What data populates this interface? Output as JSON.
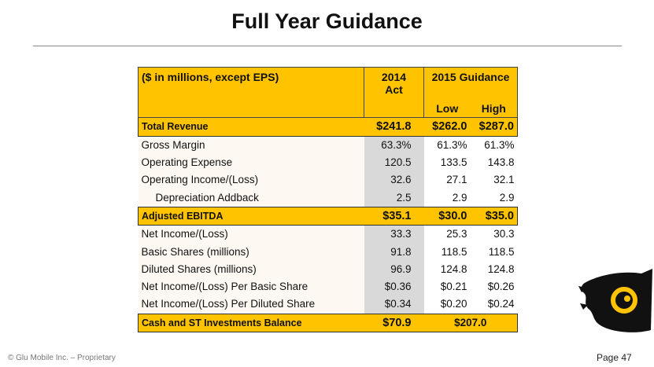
{
  "header": {
    "title": "Full Year Guidance"
  },
  "table": {
    "columns": {
      "label": "($ in millions, except EPS)",
      "act": "2014 Act",
      "guidance": "2015 Guidance",
      "low": "Low",
      "high": "High"
    },
    "rows": [
      {
        "label": "Total Revenue",
        "act": "$241.8",
        "low": "$262.0",
        "high": "$287.0",
        "highlight": true
      },
      {
        "label": "Gross Margin",
        "act": "63.3%",
        "low": "61.3%",
        "high": "61.3%"
      },
      {
        "label": "Operating Expense",
        "act": "120.5",
        "low": "133.5",
        "high": "143.8"
      },
      {
        "label": "Operating Income/(Loss)",
        "act": "32.6",
        "low": "27.1",
        "high": "32.1"
      },
      {
        "label": "Depreciation Addback",
        "act": "2.5",
        "low": "2.9",
        "high": "2.9",
        "indent": true
      },
      {
        "label": "Adjusted EBITDA",
        "act": "$35.1",
        "low": "$30.0",
        "high": "$35.0",
        "highlight": true
      },
      {
        "label": "Net Income/(Loss)",
        "act": "33.3",
        "low": "25.3",
        "high": "30.3"
      },
      {
        "label": "Basic Shares (millions)",
        "act": "91.8",
        "low": "118.5",
        "high": "118.5"
      },
      {
        "label": "Diluted Shares (millions)",
        "act": "96.9",
        "low": "124.8",
        "high": "124.8"
      },
      {
        "label": "Net Income/(Loss) Per Basic Share",
        "act": "$0.36",
        "low": "$0.21",
        "high": "$0.26"
      },
      {
        "label": "Net Income/(Loss) Per Diluted Share",
        "act": "$0.34",
        "low": "$0.20",
        "high": "$0.24"
      },
      {
        "label": "Cash and ST Investments Balance",
        "act": "$70.9",
        "guidance": "$207.0",
        "highlight": true
      }
    ]
  },
  "footer": {
    "copyright": "© Glu Mobile Inc. – Proprietary",
    "page": "Page 47"
  }
}
